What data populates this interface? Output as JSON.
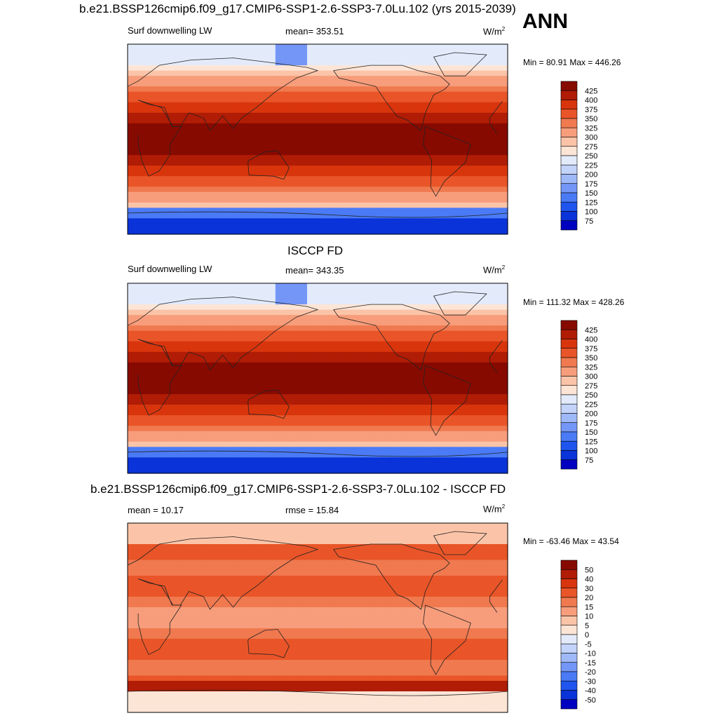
{
  "colors": {
    "abs_scale": [
      "#000080",
      "#0000c0",
      "#0a33d9",
      "#1f55ee",
      "#4a7af5",
      "#7396f7",
      "#9fb9f8",
      "#c3d3f9",
      "#e3ebfb",
      "#fde5d6",
      "#fbc4a8",
      "#f79d7b",
      "#f0794f",
      "#e95528",
      "#d9350d",
      "#b01c05",
      "#870a00"
    ],
    "diff_scale": [
      "#000080",
      "#0000c0",
      "#0a33d9",
      "#1f55ee",
      "#4a7af5",
      "#7396f7",
      "#9fb9f8",
      "#c3d3f9",
      "#e3ebfb",
      "#fde5d6",
      "#fbc4a8",
      "#f79d7b",
      "#f0794f",
      "#e95528",
      "#d9350d",
      "#b01c05",
      "#870a00"
    ]
  },
  "chart_data": [
    {
      "type": "heatmap",
      "title": "b.e21.BSSP126cmip6.f09_g17.CMIP6-SSP1-2.6-SSP3-7.0Lu.102 (yrs 2015-2039)",
      "season": "ANN",
      "variable": "Surf downwelling LW",
      "stat_label": "mean=",
      "stat_value": "353.51",
      "units": "W/m",
      "units_sup": "2",
      "min_max": "Min =  80.91 Max = 446.26",
      "min": 80.91,
      "max": 446.26,
      "colorbar_levels": [
        "425",
        "400",
        "375",
        "350",
        "325",
        "300",
        "275",
        "250",
        "225",
        "200",
        "175",
        "150",
        "125",
        "100",
        "75"
      ]
    },
    {
      "type": "heatmap",
      "title": "ISCCP FD",
      "variable": "Surf downwelling LW",
      "stat_label": "mean=",
      "stat_value": "343.35",
      "units": "W/m",
      "units_sup": "2",
      "min_max": "Min = 111.32 Max = 428.26",
      "min": 111.32,
      "max": 428.26,
      "colorbar_levels": [
        "425",
        "400",
        "375",
        "350",
        "325",
        "300",
        "275",
        "250",
        "225",
        "200",
        "175",
        "150",
        "125",
        "100",
        "75"
      ]
    },
    {
      "type": "heatmap",
      "title": "b.e21.BSSP126cmip6.f09_g17.CMIP6-SSP1-2.6-SSP3-7.0Lu.102 - ISCCP FD",
      "stat_label": "mean =",
      "stat_value": "10.17",
      "rmse_label": "rmse =",
      "rmse_value": "15.84",
      "units": "W/m",
      "units_sup": "2",
      "min_max": "Min = -63.46 Max =  43.54",
      "min": -63.46,
      "max": 43.54,
      "colorbar_levels": [
        "50",
        "40",
        "30",
        "20",
        "15",
        "10",
        "5",
        "0",
        "-5",
        "-10",
        "-15",
        "-20",
        "-30",
        "-40",
        "-50"
      ]
    }
  ]
}
